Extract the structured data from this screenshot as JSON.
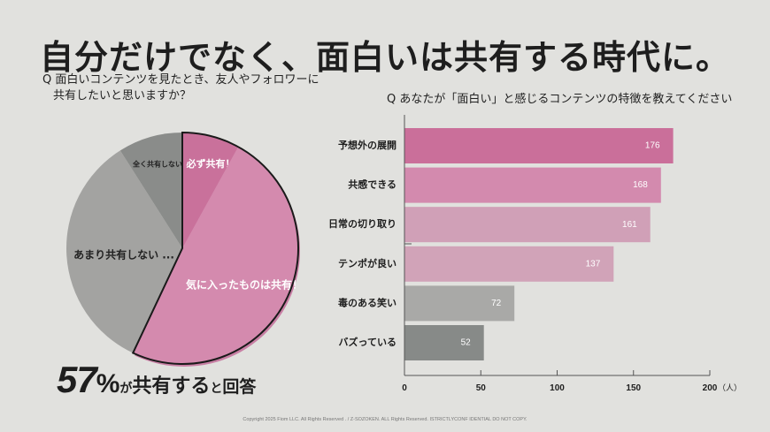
{
  "title": "自分だけでなく、面白いは共有する時代に。",
  "left_question": {
    "line1": "Q 面白いコンテンツを見たとき、友人やフォロワーに",
    "line2": "共有したいと思いますか？"
  },
  "right_question": "Q あなたが「面白い」と感じるコンテンツの特徴を教えてください",
  "summary": {
    "number": "57",
    "percent": "%",
    "text1": "が",
    "text2": "共有する",
    "text3": "と",
    "text4": "回答"
  },
  "copyright": "Copyright 2025 Fiom LLC. All Rights Reserved . / Z-SOZOKEN. ALL Rights Reserved. ISTRICTLYCONF IDENTIAL DO NOT COPY.",
  "chart_data": [
    {
      "type": "pie",
      "title": "Q 面白いコンテンツを見たとき、友人やフォロワーに共有したいと思いますか？",
      "slices": [
        {
          "label": "必ず共有！",
          "value": 8,
          "color": "#c9719b",
          "text_color": "#ffffff",
          "shared": true
        },
        {
          "label": "気に入ったものは共有！",
          "value": 49,
          "color": "#d48aae",
          "text_color": "#ffffff",
          "shared": true
        },
        {
          "label": "あまり共有しない ...",
          "value": 34,
          "color": "#a3a3a1",
          "text_color": "#222222",
          "shared": false
        },
        {
          "label": "全く共有しない",
          "value": 9,
          "color": "#8a8c8a",
          "text_color": "#222222",
          "shared": false
        }
      ],
      "highlight_total": 57
    },
    {
      "type": "bar",
      "orientation": "horizontal",
      "title": "Q あなたが「面白い」と感じるコンテンツの特徴を教えてください",
      "categories": [
        "予想外の展開",
        "共感できる",
        "日常の切り取り",
        "テンポが良い",
        "毒のある笑い",
        "バズっている"
      ],
      "values": [
        176,
        168,
        161,
        137,
        72,
        52
      ],
      "colors": [
        "#ca6f9a",
        "#d38aae",
        "#d0a0b7",
        "#d1a3b8",
        "#a9a9a7",
        "#878a88"
      ],
      "xlim": [
        0,
        200
      ],
      "xticks": [
        "0",
        "50",
        "100",
        "150",
        "200"
      ],
      "xlabel": "（人）",
      "grid": false
    }
  ]
}
